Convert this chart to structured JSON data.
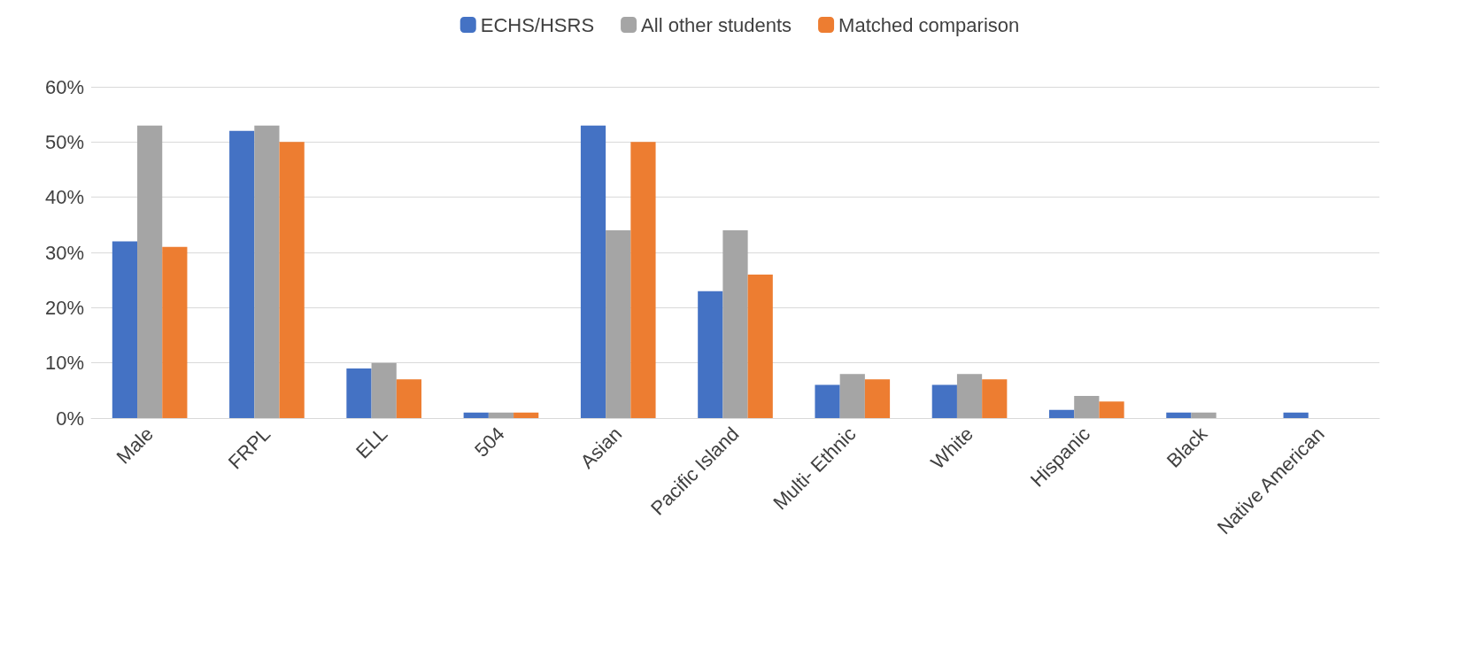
{
  "chart_data": {
    "type": "bar",
    "categories": [
      "Male",
      "FRPL",
      "ELL",
      "504",
      "Asian",
      "Pacific Island",
      "Multi- Ethnic",
      "White",
      "Hispanic",
      "Black",
      "Native American"
    ],
    "series": [
      {
        "name": "ECHS/HSRS",
        "color": "#4472c4",
        "values": [
          32,
          52,
          9,
          1,
          53,
          23,
          6,
          6,
          1.5,
          1,
          1
        ]
      },
      {
        "name": "All other students",
        "color": "#a5a5a5",
        "values": [
          53,
          53,
          10,
          1,
          34,
          34,
          8,
          8,
          4,
          1,
          null
        ]
      },
      {
        "name": "Matched comparison",
        "color": "#ed7d31",
        "values": [
          31,
          50,
          7,
          1,
          50,
          26,
          7,
          7,
          3,
          null,
          null
        ]
      }
    ],
    "ylim": [
      0,
      60
    ],
    "yticks": [
      {
        "value": 0,
        "label": "0%"
      },
      {
        "value": 10,
        "label": "10%"
      },
      {
        "value": 20,
        "label": "20%"
      },
      {
        "value": 30,
        "label": "30%"
      },
      {
        "value": 40,
        "label": "40%"
      },
      {
        "value": 50,
        "label": "50%"
      },
      {
        "value": 60,
        "label": "60%"
      }
    ],
    "grid": "y",
    "legend": "top"
  }
}
